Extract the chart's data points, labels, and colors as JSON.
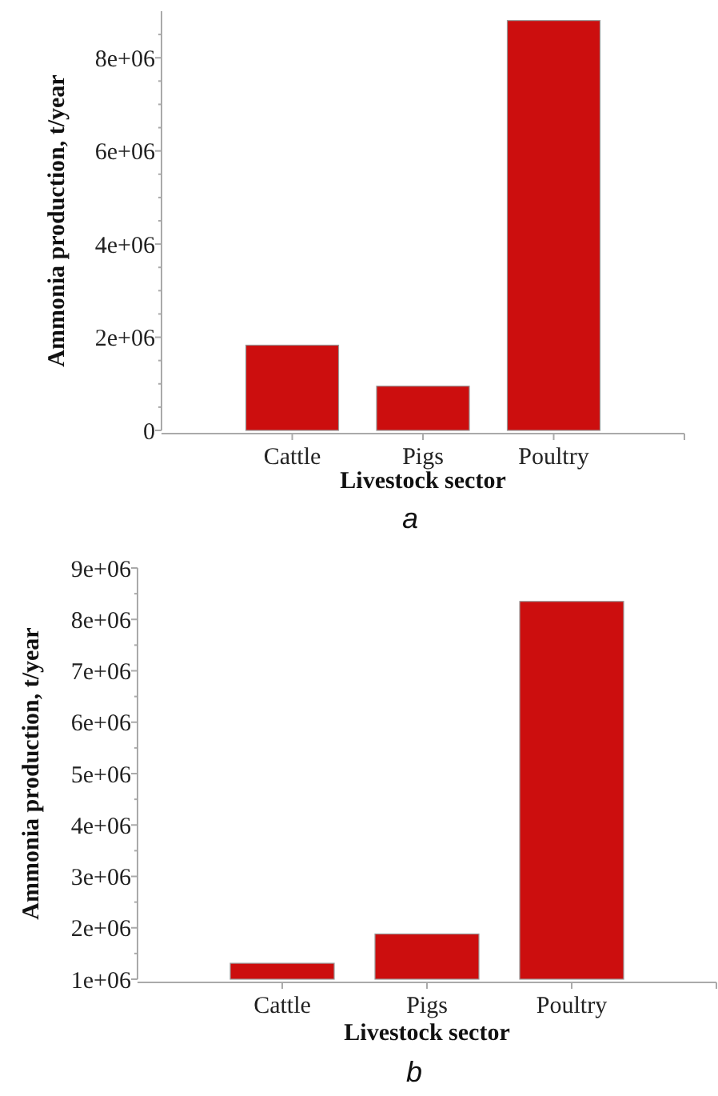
{
  "chart_data": [
    {
      "type": "bar",
      "categories": [
        "Cattle",
        "Pigs",
        "Poultry"
      ],
      "values": [
        1830000,
        950000,
        8800000
      ],
      "color": "#cc0e0e",
      "xlabel": "Livestock sector",
      "ylabel": "Ammonia production, t/year",
      "ylim": [
        0,
        9000000
      ],
      "yticks": [
        {
          "value": 0,
          "label": "0"
        },
        {
          "value": 500000,
          "label": null
        },
        {
          "value": 1000000,
          "label": null
        },
        {
          "value": 1500000,
          "label": null
        },
        {
          "value": 2000000,
          "label": "2e+06"
        },
        {
          "value": 2500000,
          "label": null
        },
        {
          "value": 3000000,
          "label": null
        },
        {
          "value": 3500000,
          "label": null
        },
        {
          "value": 4000000,
          "label": "4e+06"
        },
        {
          "value": 4500000,
          "label": null
        },
        {
          "value": 5000000,
          "label": null
        },
        {
          "value": 5500000,
          "label": null
        },
        {
          "value": 6000000,
          "label": "6e+06"
        },
        {
          "value": 6500000,
          "label": null
        },
        {
          "value": 7000000,
          "label": null
        },
        {
          "value": 7500000,
          "label": null
        },
        {
          "value": 8000000,
          "label": "8e+06"
        },
        {
          "value": 8500000,
          "label": null
        }
      ],
      "annotations": [
        "a"
      ]
    },
    {
      "type": "bar",
      "categories": [
        "Cattle",
        "Pigs",
        "Poultry"
      ],
      "values": [
        1310000,
        1880000,
        8350000
      ],
      "color": "#cc0e0e",
      "xlabel": "Livestock sector",
      "ylabel": "Ammonia production, t/year",
      "ylim": [
        1000000,
        9000000
      ],
      "yticks": [
        {
          "value": 1000000,
          "label": "1e+06"
        },
        {
          "value": 1500000,
          "label": null
        },
        {
          "value": 2000000,
          "label": "2e+06"
        },
        {
          "value": 2500000,
          "label": null
        },
        {
          "value": 3000000,
          "label": "3e+06"
        },
        {
          "value": 3500000,
          "label": null
        },
        {
          "value": 4000000,
          "label": "4e+06"
        },
        {
          "value": 4500000,
          "label": null
        },
        {
          "value": 5000000,
          "label": "5e+06"
        },
        {
          "value": 5500000,
          "label": null
        },
        {
          "value": 6000000,
          "label": "6e+06"
        },
        {
          "value": 6500000,
          "label": null
        },
        {
          "value": 7000000,
          "label": "7e+06"
        },
        {
          "value": 7500000,
          "label": null
        },
        {
          "value": 8000000,
          "label": "8e+06"
        },
        {
          "value": 8500000,
          "label": null
        },
        {
          "value": 9000000,
          "label": "9e+06"
        }
      ],
      "annotations": [
        "b"
      ]
    }
  ]
}
